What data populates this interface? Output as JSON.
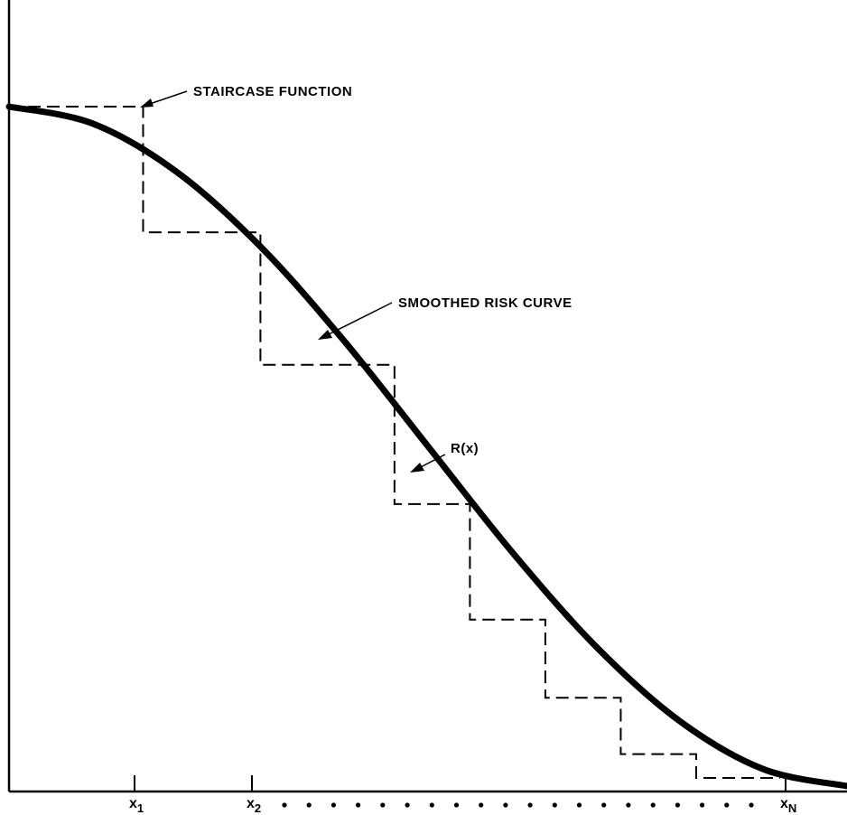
{
  "annotations": {
    "staircase": "STAIRCASE FUNCTION",
    "smoothed": "SMOOTHED RISK CURVE",
    "rx": "R(x)"
  },
  "x_ticks": [
    {
      "base": "x",
      "sub": "1"
    },
    {
      "base": "x",
      "sub": "2"
    },
    {
      "base": "x",
      "sub": "N"
    }
  ],
  "ellipsis_dots": 20,
  "colors": {
    "ink": "#000000",
    "background": "#ffffff"
  },
  "chart_data": {
    "type": "line",
    "title": "",
    "xlabel": "",
    "ylabel": "",
    "curve": {
      "name": "R(x)",
      "description": "smoothed decreasing risk curve",
      "x": [
        0,
        0.1,
        0.2,
        0.3,
        0.4,
        0.5,
        0.6,
        0.7,
        0.8,
        0.9,
        1.0
      ],
      "y": [
        1.0,
        0.975,
        0.904,
        0.794,
        0.655,
        0.5,
        0.345,
        0.206,
        0.096,
        0.025,
        0.0
      ]
    },
    "staircase": {
      "name": "staircase function",
      "x_edges": [
        0,
        0.16,
        0.3,
        0.46,
        0.55,
        0.64,
        0.73,
        0.82,
        0.92
      ],
      "levels": [
        1.0,
        0.815,
        0.62,
        0.415,
        0.245,
        0.13,
        0.047,
        0.012
      ]
    }
  }
}
